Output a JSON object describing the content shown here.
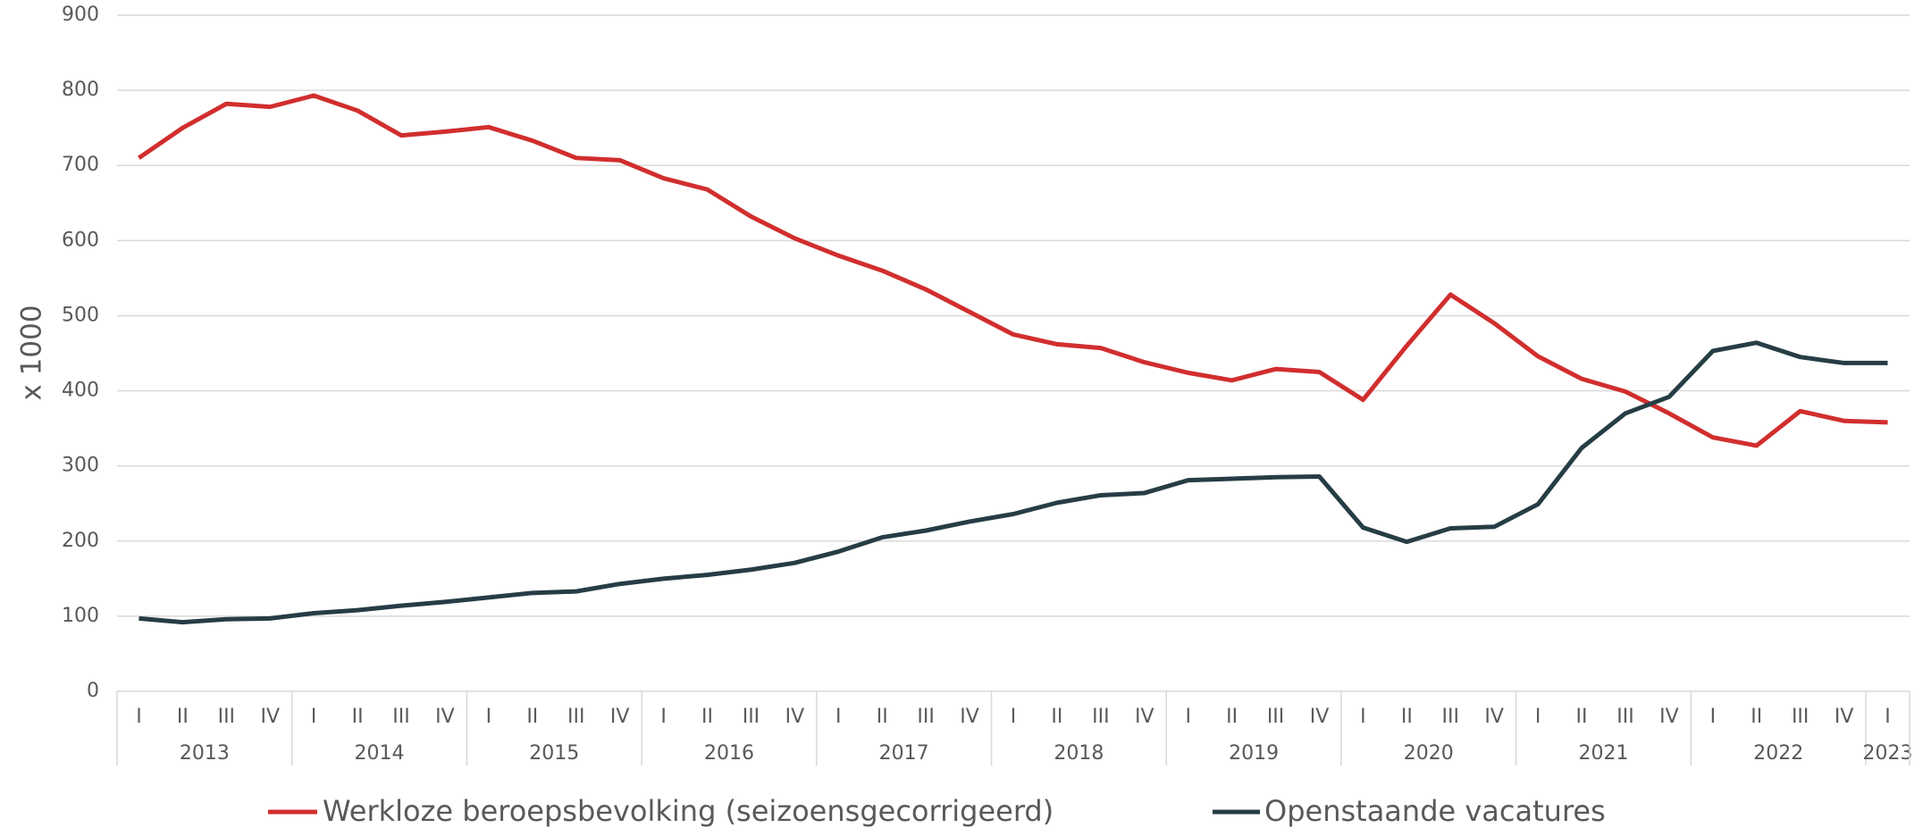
{
  "chart_data": {
    "type": "line",
    "y_label": "x 1000",
    "categories": [
      "I",
      "II",
      "III",
      "IV",
      "I",
      "II",
      "III",
      "IV",
      "I",
      "II",
      "III",
      "IV",
      "I",
      "II",
      "III",
      "IV",
      "I",
      "II",
      "III",
      "IV",
      "I",
      "II",
      "III",
      "IV",
      "I",
      "II",
      "III",
      "IV",
      "I",
      "II",
      "III",
      "IV",
      "I",
      "II",
      "III",
      "IV",
      "I",
      "II",
      "III",
      "IV",
      "I"
    ],
    "years": [
      "2013",
      "2014",
      "2015",
      "2016",
      "2017",
      "2018",
      "2019",
      "2020",
      "2021",
      "2022",
      "2023"
    ],
    "series": [
      {
        "name": "Werkloze beroepsbevolking (seizoensgecorrigeerd)",
        "color": "#d12e2e",
        "values": [
          710,
          750,
          782,
          778,
          793,
          773,
          740,
          745,
          751,
          733,
          710,
          707,
          683,
          668,
          632,
          603,
          580,
          560,
          535,
          505,
          475,
          462,
          457,
          438,
          424,
          414,
          429,
          425,
          388,
          460,
          528,
          490,
          446,
          416,
          399,
          370,
          338,
          327,
          373,
          360,
          358
        ]
      },
      {
        "name": "Openstaande vacatures",
        "color": "#263d45",
        "values": [
          97,
          92,
          96,
          97,
          104,
          108,
          114,
          119,
          125,
          131,
          133,
          143,
          150,
          155,
          162,
          171,
          186,
          205,
          214,
          226,
          236,
          251,
          261,
          264,
          281,
          283,
          285,
          286,
          218,
          199,
          217,
          219,
          249,
          324,
          370,
          392,
          453,
          464,
          445,
          437,
          437
        ]
      }
    ],
    "ylim": [
      0,
      900
    ],
    "yticks": [
      0,
      100,
      200,
      300,
      400,
      500,
      600,
      700,
      800,
      900
    ],
    "grid": true
  }
}
